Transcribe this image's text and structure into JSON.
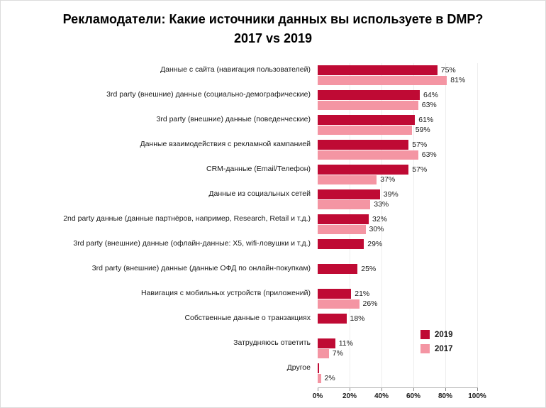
{
  "page": {
    "title_line1": "Рекламодатели: Какие источники данных вы используете в DMP?",
    "title_line2": "2017 vs 2019"
  },
  "legend": {
    "items": [
      {
        "label": "2019",
        "color": "#bf0a34"
      },
      {
        "label": "2017",
        "color": "#f495a3"
      }
    ]
  },
  "chart_data": {
    "type": "bar",
    "orientation": "horizontal",
    "title": "Рекламодатели: Какие источники данных вы используете в DMP? 2017 vs 2019",
    "xlabel": "",
    "ylabel": "",
    "xlim": [
      0,
      100
    ],
    "x_ticks": [
      "0%",
      "20%",
      "40%",
      "60%",
      "80%",
      "100%"
    ],
    "grid": true,
    "legend_position": "right-bottom",
    "categories": [
      "Данные с сайта (навигация пользователей)",
      "3rd party (внешние) данные (социально-демографические)",
      "3rd party (внешние) данные (поведенческие)",
      "Данные взаимодействия с рекламной кампанией",
      "CRM-данные (Email/Телефон)",
      "Данные из социальных сетей",
      "2nd party данные (данные партнёров, например, Research, Retail и т.д.)",
      "3rd party (внешние) данные (офлайн-данные: X5, wifi-ловушки и т.д.)",
      "3rd party (внешние) данные (данные ОФД по онлайн-покупкам)",
      "Навигация с мобильных устройств (приложений)",
      "Собственные данные о транзакциях",
      "Затрудняюсь ответить",
      "Другое"
    ],
    "series": [
      {
        "name": "2019",
        "color": "#bf0a34",
        "values": [
          75,
          64,
          61,
          57,
          57,
          39,
          32,
          29,
          25,
          21,
          18,
          11,
          1
        ],
        "labels": [
          "75%",
          "64%",
          "61%",
          "57%",
          "57%",
          "39%",
          "32%",
          "29%",
          "25%",
          "21%",
          "18%",
          "11%",
          ""
        ]
      },
      {
        "name": "2017",
        "color": "#f495a3",
        "values": [
          81,
          63,
          59,
          63,
          37,
          33,
          30,
          null,
          null,
          26,
          null,
          7,
          2
        ],
        "labels": [
          "81%",
          "63%",
          "59%",
          "63%",
          "37%",
          "33%",
          "30%",
          null,
          null,
          "26%",
          null,
          "7%",
          "2%"
        ]
      }
    ]
  }
}
